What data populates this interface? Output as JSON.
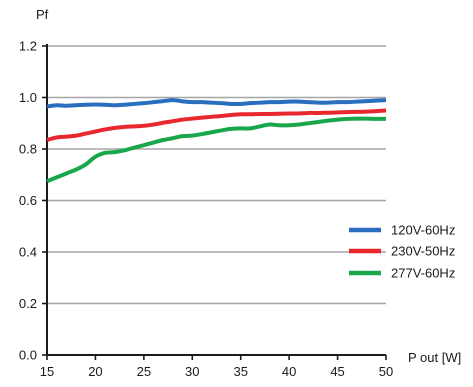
{
  "chart_data": {
    "type": "line",
    "xlabel": "P out [W]",
    "ylabel": "Pf",
    "xlim": [
      15,
      50
    ],
    "ylim": [
      0,
      1.2
    ],
    "x_ticks": [
      "15",
      "20",
      "25",
      "30",
      "35",
      "40",
      "45",
      "50"
    ],
    "y_ticks": [
      "0.0",
      "0.2",
      "0.4",
      "0.6",
      "0.8",
      "1.0",
      "1.2"
    ],
    "grid": "horizontal",
    "legend_position": "right",
    "series": [
      {
        "name": "120V-60Hz",
        "color": "#2a6ebf",
        "x": [
          15,
          16,
          17,
          18,
          19,
          20,
          21,
          22,
          23,
          24,
          25,
          26,
          27,
          28,
          29,
          30,
          31,
          32,
          33,
          34,
          35,
          36,
          37,
          38,
          39,
          40,
          41,
          42,
          43,
          44,
          45,
          46,
          47,
          48,
          49,
          50
        ],
        "y": [
          0.965,
          0.97,
          0.968,
          0.97,
          0.972,
          0.973,
          0.972,
          0.97,
          0.972,
          0.975,
          0.978,
          0.982,
          0.986,
          0.99,
          0.985,
          0.982,
          0.982,
          0.98,
          0.978,
          0.975,
          0.975,
          0.978,
          0.98,
          0.982,
          0.982,
          0.984,
          0.984,
          0.982,
          0.98,
          0.98,
          0.982,
          0.982,
          0.984,
          0.986,
          0.988,
          0.99
        ]
      },
      {
        "name": "230V-50Hz",
        "color": "#e8282e",
        "x": [
          15,
          16,
          17,
          18,
          19,
          20,
          21,
          22,
          23,
          24,
          25,
          26,
          27,
          28,
          29,
          30,
          31,
          32,
          33,
          34,
          35,
          36,
          37,
          38,
          39,
          40,
          41,
          42,
          43,
          44,
          45,
          46,
          47,
          48,
          49,
          50
        ],
        "y": [
          0.835,
          0.845,
          0.848,
          0.852,
          0.86,
          0.868,
          0.876,
          0.882,
          0.886,
          0.888,
          0.89,
          0.895,
          0.902,
          0.908,
          0.914,
          0.918,
          0.922,
          0.925,
          0.928,
          0.932,
          0.935,
          0.935,
          0.936,
          0.936,
          0.937,
          0.938,
          0.938,
          0.94,
          0.94,
          0.941,
          0.942,
          0.943,
          0.944,
          0.945,
          0.947,
          0.95
        ]
      },
      {
        "name": "277V-60Hz",
        "color": "#1aa64a",
        "x": [
          15,
          16,
          17,
          18,
          19,
          20,
          21,
          22,
          23,
          24,
          25,
          26,
          27,
          28,
          29,
          30,
          31,
          32,
          33,
          34,
          35,
          36,
          37,
          38,
          39,
          40,
          41,
          42,
          43,
          44,
          45,
          46,
          47,
          48,
          49,
          50
        ],
        "y": [
          0.675,
          0.69,
          0.705,
          0.72,
          0.74,
          0.77,
          0.785,
          0.788,
          0.795,
          0.805,
          0.815,
          0.825,
          0.835,
          0.842,
          0.85,
          0.852,
          0.858,
          0.865,
          0.872,
          0.878,
          0.88,
          0.88,
          0.888,
          0.895,
          0.892,
          0.892,
          0.895,
          0.9,
          0.905,
          0.91,
          0.914,
          0.917,
          0.918,
          0.918,
          0.917,
          0.917
        ]
      }
    ]
  }
}
